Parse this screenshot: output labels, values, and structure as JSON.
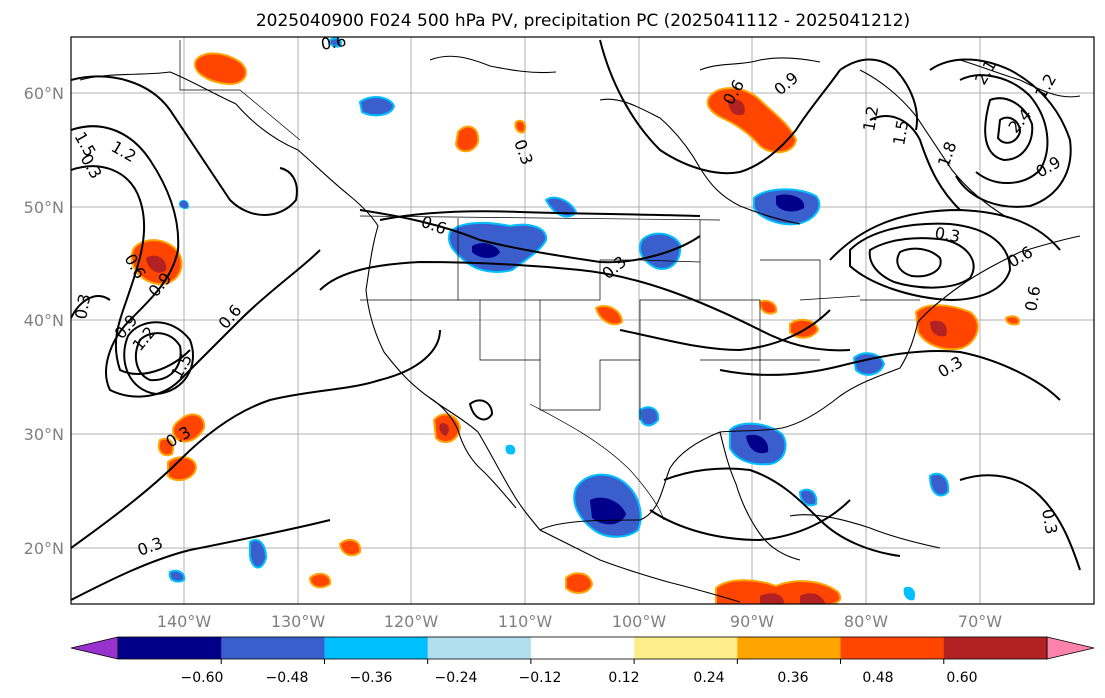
{
  "title": "2025040900 F024 500 hPa PV, precipitation PC (2025041112 - 2025041212)",
  "lat_labels": [
    "60°N",
    "50°N",
    "40°N",
    "30°N",
    "20°N"
  ],
  "lon_labels": [
    "140°W",
    "130°W",
    "120°W",
    "110°W",
    "100°W",
    "90°W",
    "80°W",
    "70°W"
  ],
  "colorbar": {
    "colors": [
      "#9932cc",
      "#00008b",
      "#3a5fcd",
      "#00bfff",
      "#b2dfee",
      "#ffffff",
      "#ffec8b",
      "#ffa500",
      "#ff4500",
      "#b22222",
      "#ff82ab"
    ],
    "tick_labels": [
      "−0.60",
      "−0.48",
      "−0.36",
      "−0.24",
      "−0.12",
      "0.12",
      "0.24",
      "0.36",
      "0.48",
      "0.60"
    ]
  },
  "contour_labels": [
    "0.6",
    "0.3",
    "0.6",
    "1.2",
    "1.5",
    "0.9",
    "0.3",
    "0.9",
    "1.2",
    "1.5",
    "0.6",
    "0.3",
    "0.3",
    "0.6",
    "0.3",
    "0.3",
    "0.6",
    "0.9",
    "1.2",
    "1.5",
    "1.8",
    "2.1",
    "2.4",
    "1.2",
    "0.9",
    "0.3",
    "0.6",
    "0.6",
    "0.3",
    "0.3"
  ]
}
